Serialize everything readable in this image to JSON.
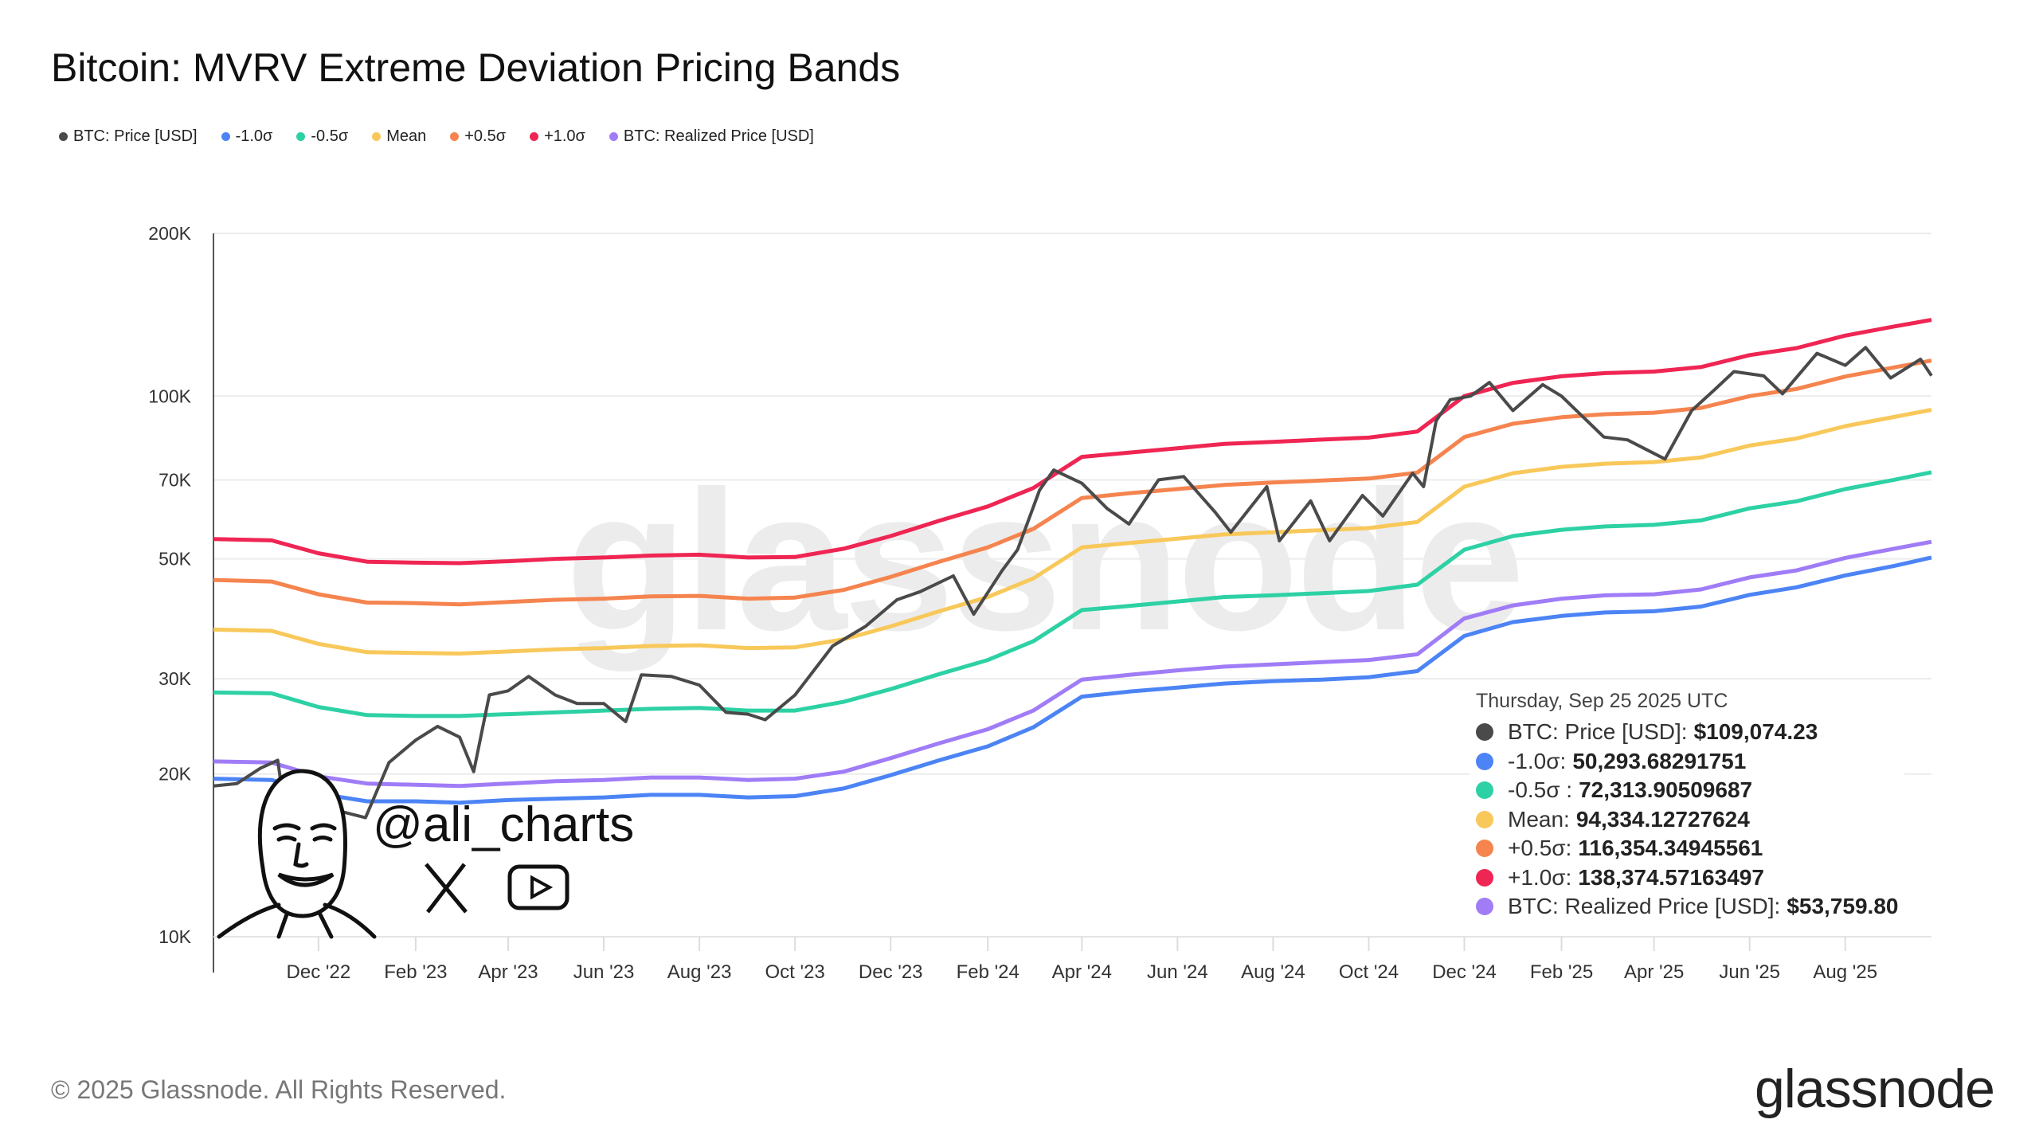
{
  "header": {
    "title": "Bitcoin: MVRV Extreme Deviation Pricing Bands"
  },
  "legend": [
    {
      "label": "BTC: Price [USD]",
      "color": "#4a4a4a"
    },
    {
      "label": "-1.0σ",
      "color": "#4c84f5"
    },
    {
      "label": "-0.5σ",
      "color": "#2dd1a4"
    },
    {
      "label": "Mean",
      "color": "#f8c85a"
    },
    {
      "label": "+0.5σ",
      "color": "#f5844f"
    },
    {
      "label": "+1.0σ",
      "color": "#ef2553"
    },
    {
      "label": "BTC: Realized Price [USD]",
      "color": "#a07cf7"
    }
  ],
  "tooltip": {
    "date": "Thursday, Sep 25 2025 UTC",
    "rows": [
      {
        "label": "BTC: Price [USD]:",
        "value": "$109,074.23",
        "color": "#4a4a4a"
      },
      {
        "label": "-1.0σ:",
        "value": "50,293.68291751",
        "color": "#4c84f5"
      },
      {
        "label": "-0.5σ :",
        "value": "72,313.90509687",
        "color": "#2dd1a4"
      },
      {
        "label": "Mean:",
        "value": "94,334.12727624",
        "color": "#f8c85a"
      },
      {
        "label": "+0.5σ:",
        "value": "116,354.34945561",
        "color": "#f5844f"
      },
      {
        "label": "+1.0σ:",
        "value": "138,374.57163497",
        "color": "#ef2553"
      },
      {
        "label": "BTC: Realized Price [USD]:",
        "value": "$53,759.80",
        "color": "#a07cf7"
      }
    ]
  },
  "watermark": "glassnode",
  "branding": {
    "handle": "@ali_charts",
    "icons": [
      "mascot-portrait",
      "x-logo-icon",
      "youtube-icon"
    ]
  },
  "footer": {
    "copyright": "© 2025 Glassnode. All Rights Reserved.",
    "logo": "glassnode"
  },
  "chart_data": {
    "type": "line",
    "title": "Bitcoin: MVRV Extreme Deviation Pricing Bands",
    "y_scale": "log",
    "ylim": [
      10000,
      200000
    ],
    "y_ticks": [
      {
        "v": 10000,
        "label": "10K"
      },
      {
        "v": 20000,
        "label": "20K"
      },
      {
        "v": 30000,
        "label": "30K"
      },
      {
        "v": 50000,
        "label": "50K"
      },
      {
        "v": 70000,
        "label": "70K"
      },
      {
        "v": 100000,
        "label": "100K"
      },
      {
        "v": 200000,
        "label": "200K"
      }
    ],
    "xlim": [
      "2022-09-25",
      "2025-09-25"
    ],
    "x_ticks": [
      {
        "d": "2022-12-01",
        "label": "Dec '22"
      },
      {
        "d": "2023-02-01",
        "label": "Feb '23"
      },
      {
        "d": "2023-04-01",
        "label": "Apr '23"
      },
      {
        "d": "2023-06-01",
        "label": "Jun '23"
      },
      {
        "d": "2023-08-01",
        "label": "Aug '23"
      },
      {
        "d": "2023-10-01",
        "label": "Oct '23"
      },
      {
        "d": "2023-12-01",
        "label": "Dec '23"
      },
      {
        "d": "2024-02-01",
        "label": "Feb '24"
      },
      {
        "d": "2024-04-01",
        "label": "Apr '24"
      },
      {
        "d": "2024-06-01",
        "label": "Jun '24"
      },
      {
        "d": "2024-08-01",
        "label": "Aug '24"
      },
      {
        "d": "2024-10-01",
        "label": "Oct '24"
      },
      {
        "d": "2024-12-01",
        "label": "Dec '24"
      },
      {
        "d": "2025-02-01",
        "label": "Feb '25"
      },
      {
        "d": "2025-04-01",
        "label": "Apr '25"
      },
      {
        "d": "2025-06-01",
        "label": "Jun '25"
      },
      {
        "d": "2025-08-01",
        "label": "Aug '25"
      }
    ],
    "grid": true,
    "legend_position": "top-left",
    "band_dates": [
      "2022-09-25",
      "2022-11-01",
      "2022-12-01",
      "2023-01-01",
      "2023-02-01",
      "2023-03-01",
      "2023-04-01",
      "2023-05-01",
      "2023-06-01",
      "2023-07-01",
      "2023-08-01",
      "2023-09-01",
      "2023-10-01",
      "2023-11-01",
      "2023-12-01",
      "2024-01-01",
      "2024-02-01",
      "2024-03-01",
      "2024-04-01",
      "2024-05-01",
      "2024-06-01",
      "2024-07-01",
      "2024-08-01",
      "2024-09-01",
      "2024-10-01",
      "2024-11-01",
      "2024-12-01",
      "2025-01-01",
      "2025-02-01",
      "2025-03-01",
      "2025-04-01",
      "2025-05-01",
      "2025-06-01",
      "2025-07-01",
      "2025-08-01",
      "2025-09-01",
      "2025-09-25"
    ],
    "series": [
      {
        "name": "+1.0σ",
        "color": "#ef2553",
        "values": [
          54400,
          54100,
          51200,
          49400,
          49200,
          49100,
          49500,
          50000,
          50300,
          50700,
          50900,
          50300,
          50400,
          52200,
          55100,
          58800,
          62500,
          67600,
          77200,
          78600,
          80100,
          81600,
          82300,
          83100,
          83800,
          86000,
          100000,
          105800,
          108800,
          110300,
          111000,
          113200,
          119100,
          122700,
          129400,
          134500,
          138375
        ]
      },
      {
        "name": "+0.5σ",
        "color": "#f5844f",
        "values": [
          45700,
          45400,
          43000,
          41500,
          41400,
          41200,
          41600,
          42000,
          42200,
          42600,
          42700,
          42200,
          42400,
          43800,
          46300,
          49400,
          52500,
          56800,
          64800,
          66100,
          67300,
          68500,
          69200,
          69800,
          70400,
          72200,
          84000,
          88900,
          91400,
          92600,
          93200,
          95100,
          100000,
          103100,
          108700,
          113000,
          116354
        ]
      },
      {
        "name": "Mean",
        "color": "#f8c85a",
        "values": [
          37000,
          36800,
          34800,
          33600,
          33500,
          33400,
          33700,
          34000,
          34200,
          34500,
          34600,
          34200,
          34300,
          35500,
          37500,
          40000,
          42500,
          46000,
          52500,
          53500,
          54500,
          55500,
          56000,
          56500,
          57000,
          58500,
          68000,
          72000,
          74000,
          75000,
          75500,
          77000,
          81000,
          83500,
          88000,
          91500,
          94334
        ]
      },
      {
        "name": "-0.5σ",
        "color": "#2dd1a4",
        "values": [
          28300,
          28200,
          26600,
          25700,
          25600,
          25600,
          25800,
          26000,
          26200,
          26400,
          26500,
          26200,
          26200,
          27200,
          28700,
          30600,
          32500,
          35200,
          40200,
          40900,
          41700,
          42500,
          42800,
          43200,
          43600,
          44800,
          52000,
          55100,
          56600,
          57400,
          57800,
          58900,
          62000,
          63900,
          67300,
          70000,
          72314
        ]
      },
      {
        "name": "-1.0σ",
        "color": "#4c84f5",
        "values": [
          19600,
          19500,
          18400,
          17800,
          17800,
          17700,
          17900,
          18000,
          18100,
          18300,
          18300,
          18100,
          18200,
          18800,
          19900,
          21200,
          22500,
          24400,
          27800,
          28400,
          28900,
          29400,
          29700,
          29900,
          30200,
          31000,
          36000,
          38200,
          39200,
          39800,
          40000,
          40800,
          42900,
          44300,
          46600,
          48500,
          50294
        ]
      },
      {
        "name": "BTC: Realized Price [USD]",
        "color": "#a07cf7",
        "values": [
          21100,
          21000,
          19800,
          19200,
          19100,
          19000,
          19200,
          19400,
          19500,
          19700,
          19700,
          19500,
          19600,
          20200,
          21400,
          22800,
          24200,
          26200,
          29900,
          30500,
          31100,
          31600,
          31900,
          32200,
          32500,
          33300,
          38800,
          41000,
          42200,
          42800,
          43000,
          43900,
          46200,
          47600,
          50200,
          52200,
          53760
        ]
      }
    ],
    "price": {
      "name": "BTC: Price [USD]",
      "color": "#4a4a4a",
      "dates": [
        "2022-09-25",
        "2022-10-10",
        "2022-10-25",
        "2022-11-05",
        "2022-11-10",
        "2022-11-25",
        "2022-12-10",
        "2022-12-31",
        "2023-01-15",
        "2023-02-01",
        "2023-02-15",
        "2023-03-01",
        "2023-03-10",
        "2023-03-20",
        "2023-04-01",
        "2023-04-14",
        "2023-05-01",
        "2023-05-15",
        "2023-06-01",
        "2023-06-15",
        "2023-06-25",
        "2023-07-14",
        "2023-08-01",
        "2023-08-18",
        "2023-09-01",
        "2023-09-12",
        "2023-10-01",
        "2023-10-25",
        "2023-11-15",
        "2023-12-05",
        "2023-12-20",
        "2024-01-10",
        "2024-01-23",
        "2024-02-10",
        "2024-02-20",
        "2024-03-05",
        "2024-03-14",
        "2024-04-01",
        "2024-04-17",
        "2024-05-01",
        "2024-05-20",
        "2024-06-05",
        "2024-06-25",
        "2024-07-05",
        "2024-07-28",
        "2024-08-05",
        "2024-08-25",
        "2024-09-06",
        "2024-09-27",
        "2024-10-10",
        "2024-10-29",
        "2024-11-05",
        "2024-11-13",
        "2024-11-22",
        "2024-12-05",
        "2024-12-17",
        "2025-01-01",
        "2025-01-20",
        "2025-02-01",
        "2025-02-28",
        "2025-03-15",
        "2025-04-08",
        "2025-04-25",
        "2025-05-10",
        "2025-05-22",
        "2025-06-10",
        "2025-06-22",
        "2025-07-14",
        "2025-08-01",
        "2025-08-14",
        "2025-08-30",
        "2025-09-18",
        "2025-09-25"
      ],
      "values": [
        19000,
        19200,
        20500,
        21200,
        16800,
        16500,
        17200,
        16600,
        21000,
        23100,
        24500,
        23400,
        20200,
        28000,
        28500,
        30300,
        28000,
        27000,
        27000,
        25000,
        30500,
        30300,
        29200,
        26000,
        25800,
        25200,
        28000,
        34500,
        37500,
        42000,
        43500,
        46500,
        39500,
        47500,
        52000,
        67000,
        73000,
        69000,
        62000,
        58000,
        70000,
        71000,
        61000,
        56000,
        68000,
        54000,
        64000,
        54000,
        65500,
        60000,
        72000,
        68000,
        90000,
        98500,
        100000,
        106000,
        94000,
        105000,
        100000,
        84000,
        83000,
        76500,
        94000,
        103000,
        111000,
        109000,
        101000,
        120000,
        114000,
        123000,
        108000,
        117000,
        109074
      ]
    }
  }
}
